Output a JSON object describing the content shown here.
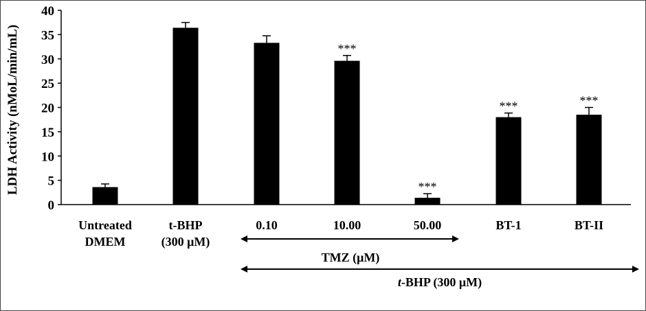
{
  "chart_data": {
    "type": "bar",
    "ylabel": "LDH Activity (nMoL/min/mL)",
    "ylim": [
      0,
      40
    ],
    "yticks": [
      0,
      5,
      10,
      15,
      20,
      25,
      30,
      35,
      40
    ],
    "grid": false,
    "categories": [
      [
        "Untreated",
        "DMEM"
      ],
      [
        "t-BHP",
        "(300 μM)"
      ],
      [
        "0.10"
      ],
      [
        "10.00"
      ],
      [
        "50.00"
      ],
      [
        "BT-1"
      ],
      [
        "BT-II"
      ]
    ],
    "values": [
      3.6,
      36.4,
      33.3,
      29.6,
      1.4,
      18.0,
      18.5
    ],
    "errors": [
      0.65,
      1.1,
      1.45,
      1.1,
      0.85,
      0.85,
      1.5
    ],
    "annotations": [
      "",
      "",
      "",
      "***",
      "***",
      "***",
      "***"
    ],
    "bar_color": "#000000",
    "groups": [
      {
        "label": "TMZ (μM)",
        "from": 2,
        "to": 4
      },
      {
        "label_italic": "t",
        "label": "-BHP (300 μM)",
        "from": 2,
        "to": 6
      }
    ]
  }
}
